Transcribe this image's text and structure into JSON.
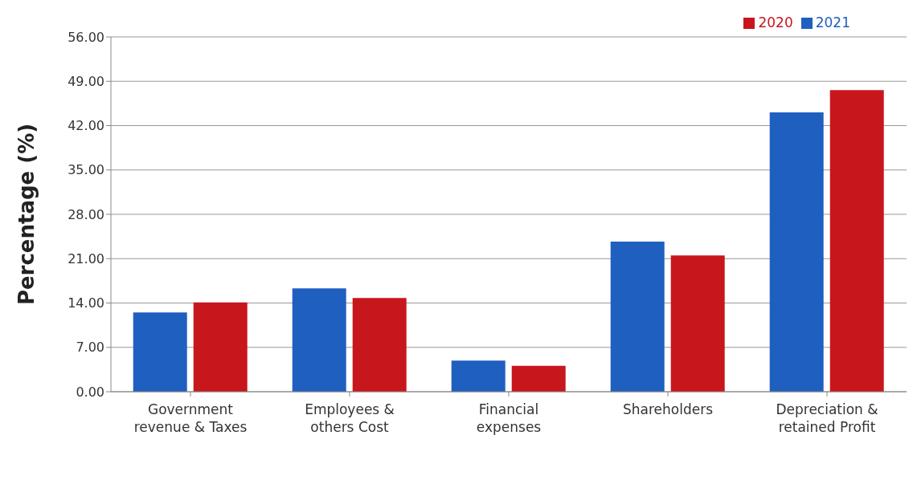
{
  "chart_data": {
    "type": "bar",
    "ylabel": "Percentage (%)",
    "categories": [
      "Government revenue & Taxes",
      "Employees & others Cost",
      "Financial expenses",
      "Shareholders",
      "Depreciation & retained Profit"
    ],
    "series": [
      {
        "name": "2021",
        "color": "#1f5fc0",
        "values": [
          12.5,
          16.3,
          4.9,
          23.7,
          44.1
        ]
      },
      {
        "name": "2020",
        "color": "#c8161d",
        "values": [
          14.1,
          14.8,
          4.1,
          21.5,
          47.6
        ]
      }
    ],
    "ylim": [
      0,
      56
    ],
    "yticks": [
      {
        "value": 0,
        "label": "0.00"
      },
      {
        "value": 7,
        "label": "7.00"
      },
      {
        "value": 14,
        "label": "14.00"
      },
      {
        "value": 21,
        "label": "21.00"
      },
      {
        "value": 28,
        "label": "28.00"
      },
      {
        "value": 35,
        "label": "35.00"
      },
      {
        "value": 42,
        "label": "42.00"
      },
      {
        "value": 49,
        "label": "49.00"
      },
      {
        "value": 56,
        "label": "56.00"
      }
    ],
    "grid": "y",
    "legend": "top right"
  }
}
